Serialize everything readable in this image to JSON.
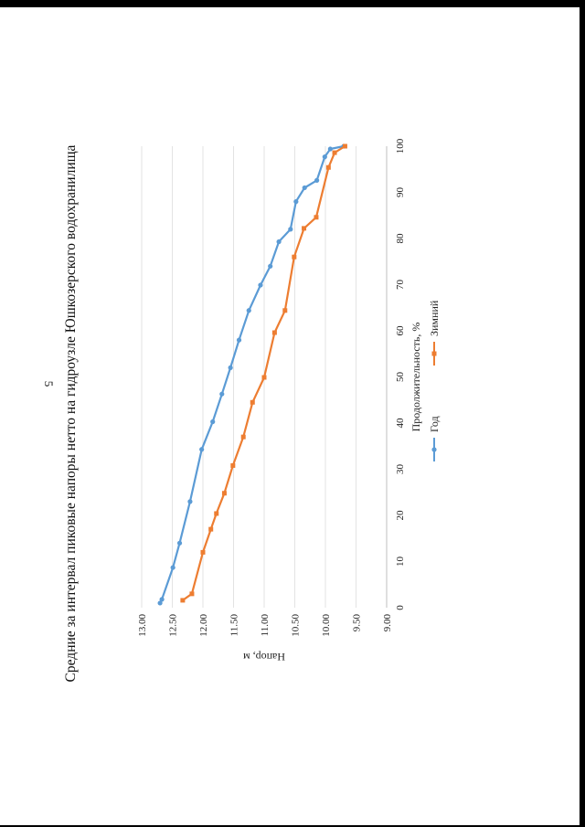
{
  "page": {
    "number": "5"
  },
  "chart_data": {
    "type": "line",
    "title": "Средние за интервал пиковые напоры нетто на гидроузле Юшкозерского водохранилища",
    "xlabel": "Продолжительность, %",
    "ylabel": "Напор, м",
    "xlim": [
      0,
      100
    ],
    "ylim": [
      9.0,
      13.0
    ],
    "xticks": [
      "0",
      "10",
      "20",
      "30",
      "40",
      "50",
      "60",
      "70",
      "80",
      "90",
      "100"
    ],
    "yticks": [
      "9.00",
      "9.50",
      "10.00",
      "10.50",
      "11.00",
      "11.50",
      "12.00",
      "12.50",
      "13.00"
    ],
    "grid": true,
    "legend": "bottom",
    "series": [
      {
        "name": "Год",
        "color": "#5b9bd5",
        "marker": "circle",
        "points": [
          [
            1.0,
            12.7
          ],
          [
            1.8,
            12.67
          ],
          [
            8.7,
            12.49
          ],
          [
            14.0,
            12.38
          ],
          [
            23.0,
            12.21
          ],
          [
            34.3,
            12.02
          ],
          [
            40.3,
            11.84
          ],
          [
            46.3,
            11.69
          ],
          [
            52.0,
            11.55
          ],
          [
            58.0,
            11.41
          ],
          [
            64.4,
            11.25
          ],
          [
            69.9,
            11.06
          ],
          [
            74.0,
            10.9
          ],
          [
            79.3,
            10.76
          ],
          [
            82.0,
            10.57
          ],
          [
            88.0,
            10.48
          ],
          [
            91.0,
            10.34
          ],
          [
            92.6,
            10.14
          ],
          [
            97.7,
            10.01
          ],
          [
            99.4,
            9.92
          ],
          [
            100,
            9.7
          ]
        ]
      },
      {
        "name": "Зимний",
        "color": "#ed7d31",
        "marker": "square",
        "points": [
          [
            1.6,
            12.33
          ],
          [
            3.0,
            12.18
          ],
          [
            12.0,
            12.0
          ],
          [
            17.0,
            11.87
          ],
          [
            20.4,
            11.78
          ],
          [
            24.8,
            11.65
          ],
          [
            30.8,
            11.51
          ],
          [
            37.0,
            11.34
          ],
          [
            44.5,
            11.19
          ],
          [
            49.9,
            11.0
          ],
          [
            59.6,
            10.83
          ],
          [
            64.4,
            10.66
          ],
          [
            76.0,
            10.51
          ],
          [
            82.2,
            10.35
          ],
          [
            84.6,
            10.15
          ],
          [
            95.4,
            9.95
          ],
          [
            98.6,
            9.85
          ],
          [
            100,
            9.68
          ]
        ]
      }
    ]
  }
}
